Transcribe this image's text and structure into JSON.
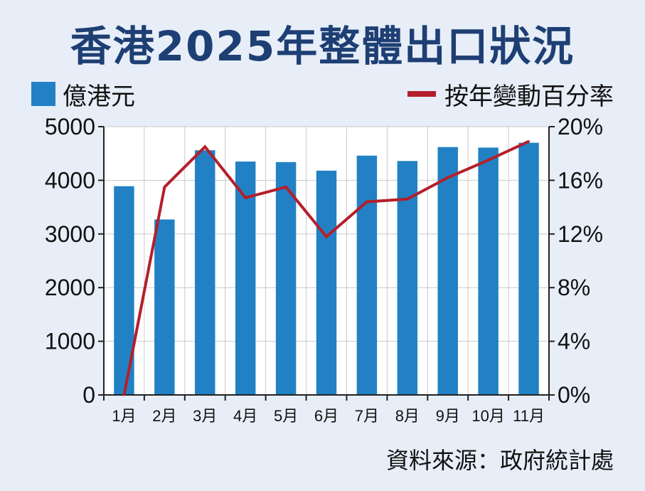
{
  "title": "香港2025年整體出口狀況",
  "legend": {
    "bar_label": "億港元",
    "line_label": "按年變動百分率"
  },
  "source": "資料來源：政府統計處",
  "colors": {
    "background": "#e7eef8",
    "bar": "#2181c4",
    "line": "#b41f2b",
    "title": "#1e3f74"
  },
  "chart_data": {
    "type": "bar",
    "title": "香港2025年整體出口狀況",
    "categories": [
      "1月",
      "2月",
      "3月",
      "4月",
      "5月",
      "6月",
      "7月",
      "8月",
      "9月",
      "10月",
      "11月"
    ],
    "series": [
      {
        "name": "億港元",
        "type": "bar",
        "axis": "left",
        "values": [
          3890,
          3270,
          4560,
          4350,
          4340,
          4180,
          4460,
          4360,
          4620,
          4610,
          4700
        ]
      },
      {
        "name": "按年變動百分率",
        "type": "line",
        "axis": "right",
        "values": [
          0.0,
          15.5,
          18.5,
          14.7,
          15.5,
          11.8,
          14.4,
          14.6,
          16.2,
          17.5,
          18.9
        ]
      }
    ],
    "y_left": {
      "lim": [
        0,
        5000
      ],
      "ticks": [
        "0",
        "1000",
        "2000",
        "3000",
        "4000",
        "5000"
      ]
    },
    "y_right": {
      "lim": [
        0,
        20
      ],
      "ticks": [
        "0%",
        "4%",
        "8%",
        "12%",
        "16%",
        "20%"
      ]
    },
    "grid": true,
    "legend_placement": "top"
  }
}
